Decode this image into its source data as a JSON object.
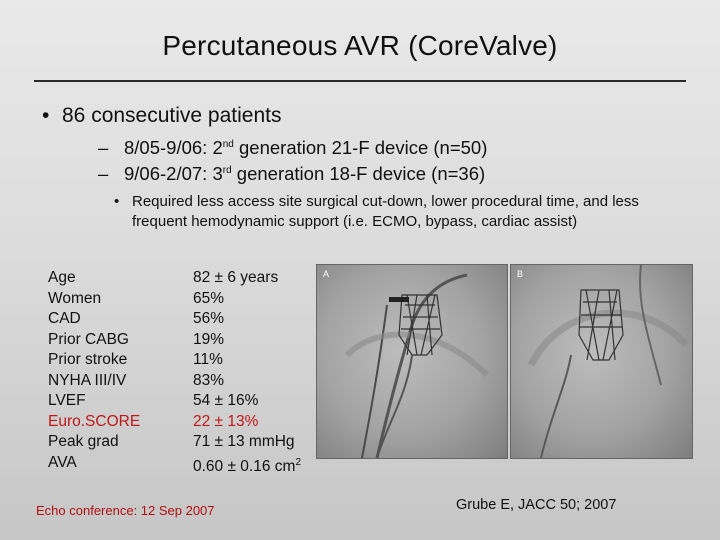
{
  "slide": {
    "title": "Percutaneous AVR (CoreValve)",
    "bullet1": "86 consecutive patients",
    "sub1": {
      "prefix": "8/05-9/06: 2",
      "sup": "nd",
      "suffix": " generation 21-F device (n=50)"
    },
    "sub2": {
      "prefix": "9/06-2/07: 3",
      "sup": "rd",
      "suffix": " generation 18-F device (n=36)"
    },
    "note": "Required less access site surgical cut-down, lower procedural time, and less frequent hemodynamic support (i.e. ECMO, bypass, cardiac assist)",
    "bullet_symbol": "•",
    "dash_symbol": "–"
  },
  "table": [
    {
      "label": "Age",
      "value": "82 ± 6 years"
    },
    {
      "label": "Women",
      "value": "65%"
    },
    {
      "label": "CAD",
      "value": "56%"
    },
    {
      "label": "Prior CABG",
      "value": "19%"
    },
    {
      "label": "Prior stroke",
      "value": "11%"
    },
    {
      "label": "NYHA III/IV",
      "value": "83%"
    },
    {
      "label": "LVEF",
      "value": "54 ± 16%"
    },
    {
      "label": "Euro.SCORE",
      "value": "22 ± 13%",
      "highlight": true
    },
    {
      "label": "Peak grad",
      "value": "71 ± 13 mmHg"
    },
    {
      "label": "AVA",
      "value": "0.60 ± 0.16 cm",
      "value_sup": "2"
    }
  ],
  "images": [
    {
      "label": "A"
    },
    {
      "label": "B"
    }
  ],
  "footer": {
    "left": "Echo conference: 12 Sep 2007",
    "right": "Grube E, JACC 50; 2007"
  },
  "colors": {
    "highlight": "#c01818",
    "footer_left": "#b40f0f"
  }
}
